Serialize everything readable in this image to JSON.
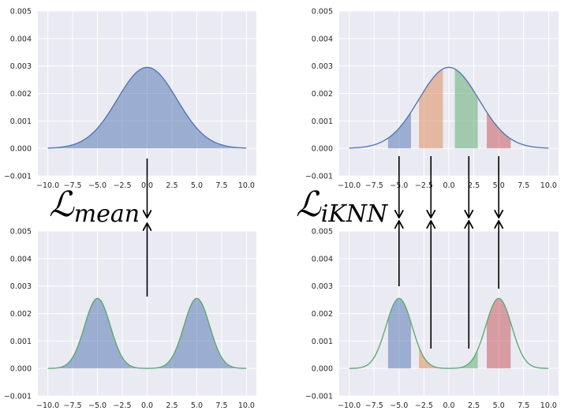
{
  "figure": {
    "loss_mean": {
      "script": "ℒ",
      "subscript": "mean"
    },
    "loss_iknn": {
      "script": "ℒ",
      "subscript": "iKNN"
    }
  },
  "chart_data": [
    {
      "id": "top-left",
      "type": "area",
      "xlim": [
        -11,
        11
      ],
      "ylim": [
        -0.001,
        0.005
      ],
      "xticks": [
        -10,
        -7.5,
        -5,
        -2.5,
        0,
        2.5,
        5,
        7.5,
        10
      ],
      "yticks": [
        -0.001,
        0,
        0.001,
        0.002,
        0.003,
        0.004,
        0.005
      ],
      "xtick_labels": [
        "−10.0",
        "−7.5",
        "−5.0",
        "−2.5",
        "0.0",
        "2.5",
        "5.0",
        "7.5",
        "10.0"
      ],
      "ytick_labels": [
        "−0.001",
        "0.000",
        "0.001",
        "0.002",
        "0.003",
        "0.004",
        "0.005"
      ],
      "grid": true,
      "series": [
        {
          "kind": "normal",
          "mean": 0,
          "std": 3,
          "peak": 0.00295,
          "color": "#4c72b0",
          "fill": "#4c72b0",
          "fill_range": [
            -10,
            10
          ]
        }
      ],
      "bands": []
    },
    {
      "id": "top-right",
      "type": "area",
      "xlim": [
        -11,
        11
      ],
      "ylim": [
        -0.001,
        0.005
      ],
      "xticks": [
        -10,
        -7.5,
        -5,
        -2.5,
        0,
        2.5,
        5,
        7.5,
        10
      ],
      "yticks": [
        -0.001,
        0,
        0.001,
        0.002,
        0.003,
        0.004,
        0.005
      ],
      "xtick_labels": [
        "−10.0",
        "−7.5",
        "−5.0",
        "−2.5",
        "0.0",
        "2.5",
        "5.0",
        "7.5",
        "10.0"
      ],
      "ytick_labels": [
        "−0.001",
        "0.000",
        "0.001",
        "0.002",
        "0.003",
        "0.004",
        "0.005"
      ],
      "grid": true,
      "series": [
        {
          "kind": "normal",
          "mean": 0,
          "std": 3,
          "peak": 0.00295,
          "color": "#4c72b0",
          "fill": null
        }
      ],
      "bands": [
        {
          "series": 0,
          "from": -6.1,
          "to": -3.8,
          "color": "#4c72b0"
        },
        {
          "series": 0,
          "from": -3.0,
          "to": -0.6,
          "color": "#dd8452"
        },
        {
          "series": 0,
          "from": 0.6,
          "to": 2.9,
          "color": "#55a868"
        },
        {
          "series": 0,
          "from": 3.8,
          "to": 6.2,
          "color": "#c44e52"
        }
      ]
    },
    {
      "id": "bottom-left",
      "type": "area",
      "xlim": [
        -11,
        11
      ],
      "ylim": [
        -0.001,
        0.005
      ],
      "xticks": [
        -10,
        -7.5,
        -5,
        -2.5,
        0,
        2.5,
        5,
        7.5,
        10
      ],
      "yticks": [
        -0.001,
        0,
        0.001,
        0.002,
        0.003,
        0.004,
        0.005
      ],
      "xtick_labels": [
        "−10.0",
        "−7.5",
        "−5.0",
        "−2.5",
        "0.0",
        "2.5",
        "5.0",
        "7.5",
        "10.0"
      ],
      "ytick_labels": [
        "−0.001",
        "0.000",
        "0.001",
        "0.002",
        "0.003",
        "0.004",
        "0.005"
      ],
      "grid": true,
      "series": [
        {
          "kind": "bimodal",
          "means": [
            -5,
            5
          ],
          "std": 1.3,
          "peak": 0.00255,
          "color": "#55a868",
          "fill": "#4c72b0",
          "fill_range": [
            -10,
            10
          ]
        }
      ],
      "bands": []
    },
    {
      "id": "bottom-right",
      "type": "area",
      "xlim": [
        -11,
        11
      ],
      "ylim": [
        -0.001,
        0.005
      ],
      "xticks": [
        -10,
        -7.5,
        -5,
        -2.5,
        0,
        2.5,
        5,
        7.5,
        10
      ],
      "yticks": [
        -0.001,
        0,
        0.001,
        0.002,
        0.003,
        0.004,
        0.005
      ],
      "xtick_labels": [
        "−10.0",
        "−7.5",
        "−5.0",
        "−2.5",
        "0.0",
        "2.5",
        "5.0",
        "7.5",
        "10.0"
      ],
      "ytick_labels": [
        "−0.001",
        "0.000",
        "0.001",
        "0.002",
        "0.003",
        "0.004",
        "0.005"
      ],
      "grid": true,
      "series": [
        {
          "kind": "bimodal",
          "means": [
            -5,
            5
          ],
          "std": 1.3,
          "peak": 0.00255,
          "color": "#55a868",
          "fill": null
        }
      ],
      "bands": [
        {
          "series": 0,
          "from": -6.1,
          "to": -3.8,
          "color": "#4c72b0"
        },
        {
          "series": 0,
          "from": -3.0,
          "to": -0.6,
          "color": "#dd8452"
        },
        {
          "series": 0,
          "from": 0.6,
          "to": 2.9,
          "color": "#55a868"
        },
        {
          "series": 0,
          "from": 3.8,
          "to": 6.2,
          "color": "#c44e52"
        }
      ]
    }
  ]
}
